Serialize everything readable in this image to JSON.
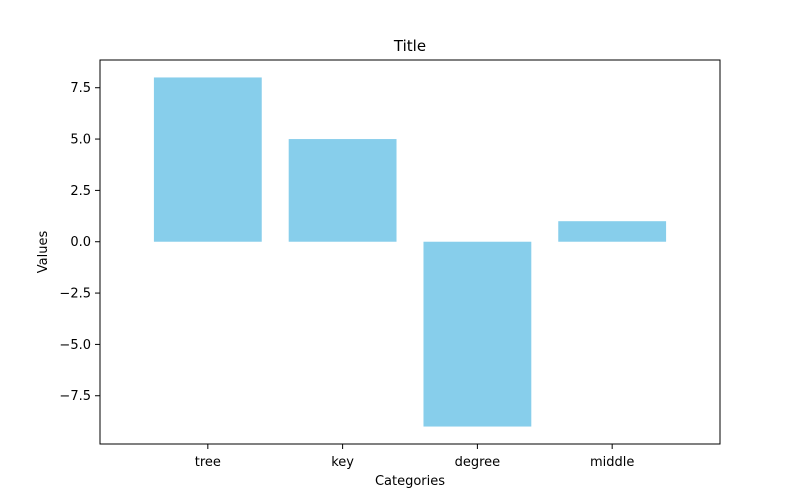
{
  "chart_data": {
    "type": "bar",
    "title": "Title",
    "xlabel": "Categories",
    "ylabel": "Values",
    "categories": [
      "tree",
      "key",
      "degree",
      "middle"
    ],
    "values": [
      8,
      5,
      -9,
      1
    ],
    "ylim": [
      -9.85,
      8.85
    ],
    "yticks": [
      -7.5,
      -5.0,
      -2.5,
      0.0,
      2.5,
      5.0,
      7.5
    ],
    "ytick_labels": [
      "−7.5",
      "−5.0",
      "−2.5",
      "0.0",
      "2.5",
      "5.0",
      "7.5"
    ],
    "bar_color": "#87CEEB",
    "grid": false,
    "legend": "none"
  }
}
